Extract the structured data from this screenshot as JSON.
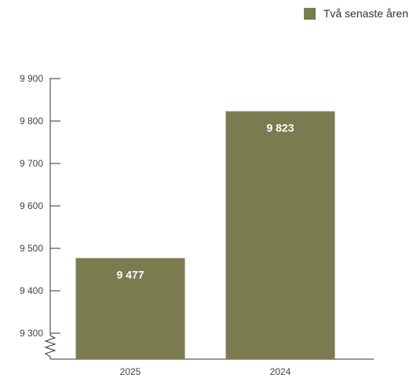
{
  "chart_data": {
    "type": "bar",
    "categories": [
      "2025",
      "2024"
    ],
    "series": [
      {
        "name": "Två senaste åren",
        "values": [
          9477,
          9823
        ]
      }
    ],
    "value_labels": [
      "9 477",
      "9 823"
    ],
    "y_ticks": [
      9300,
      9400,
      9500,
      9600,
      9700,
      9800,
      9900
    ],
    "y_tick_labels": [
      "9 300",
      "9 400",
      "9 500",
      "9 600",
      "9 700",
      "9 800",
      "9 900"
    ],
    "ylim": [
      9300,
      9900
    ],
    "y_axis_break": true,
    "legend_position": "top-right",
    "grid": false,
    "bar_color": "#7a7b4f"
  }
}
